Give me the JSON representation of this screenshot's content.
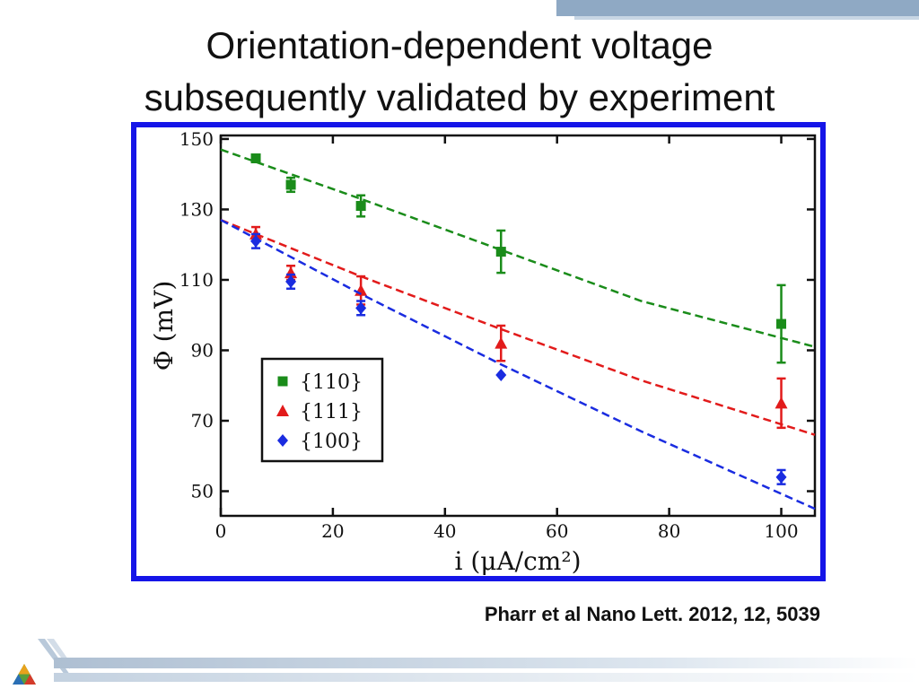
{
  "slide": {
    "title_line1": "Orientation-dependent voltage",
    "title_line2": "subsequently validated by experiment",
    "citation": "Pharr et al Nano Lett. 2012, 12, 5039"
  },
  "colors": {
    "frame": "#1515e8",
    "green": "#1a8c1a",
    "red": "#e21b1b",
    "blue": "#1a2ce0"
  },
  "chart_data": {
    "type": "scatter",
    "xlabel": "i (μA/cm²)",
    "ylabel": "Φ (mV)",
    "xlim": [
      0,
      106
    ],
    "ylim": [
      43,
      151
    ],
    "x_ticks": [
      0,
      20,
      40,
      60,
      80,
      100
    ],
    "y_ticks": [
      50,
      70,
      90,
      110,
      130,
      150
    ],
    "legend_position": "bottom-left",
    "series": [
      {
        "name": "{110}",
        "color": "#1a8c1a",
        "marker": "square",
        "points": [
          [
            6.25,
            144.5,
            1
          ],
          [
            12.5,
            137,
            2
          ],
          [
            25,
            131,
            3
          ],
          [
            50,
            118,
            6
          ],
          [
            100,
            97.5,
            11
          ]
        ],
        "fit": [
          [
            0,
            147
          ],
          [
            25,
            133
          ],
          [
            50,
            118.5
          ],
          [
            75,
            104
          ],
          [
            106,
            91
          ]
        ]
      },
      {
        "name": "{111}",
        "color": "#e21b1b",
        "marker": "triangle",
        "points": [
          [
            6.25,
            123,
            2
          ],
          [
            12.5,
            112,
            2
          ],
          [
            25,
            107,
            4
          ],
          [
            50,
            92,
            5
          ],
          [
            100,
            75,
            7
          ]
        ],
        "fit": [
          [
            0,
            127
          ],
          [
            25,
            111
          ],
          [
            50,
            96
          ],
          [
            75,
            81.5
          ],
          [
            106,
            66
          ]
        ]
      },
      {
        "name": "{100}",
        "color": "#1a2ce0",
        "marker": "diamond",
        "points": [
          [
            6.25,
            121,
            2
          ],
          [
            12.5,
            109.5,
            2
          ],
          [
            25,
            102,
            2
          ],
          [
            50,
            83,
            1
          ],
          [
            100,
            54,
            2
          ]
        ],
        "fit": [
          [
            0,
            127
          ],
          [
            25,
            106
          ],
          [
            50,
            86
          ],
          [
            75,
            67
          ],
          [
            106,
            45
          ]
        ]
      }
    ]
  }
}
